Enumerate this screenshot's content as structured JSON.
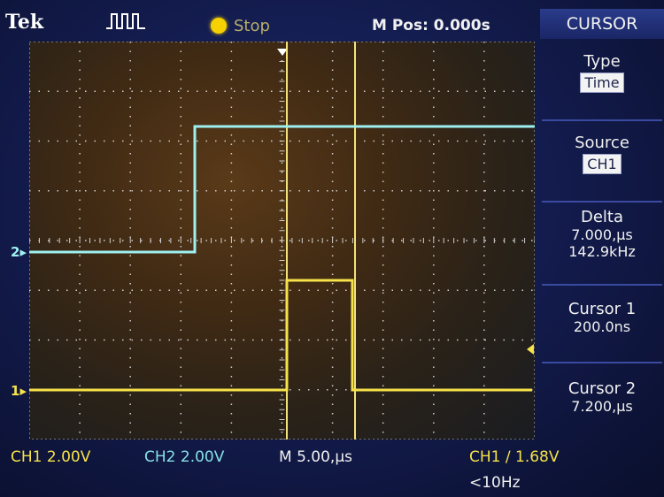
{
  "header": {
    "brand": "Tek",
    "trigger_icon": "trigger-pulse-icon",
    "acq_status": "Stop",
    "m_pos": "M Pos: 0.000s"
  },
  "menu": {
    "title": "CURSOR",
    "type_label": "Type",
    "type_value": "Time",
    "source_label": "Source",
    "source_value": "CH1",
    "delta_label": "Delta",
    "delta_time": "7.000,µs",
    "delta_freq": "142.9kHz",
    "cursor1_label": "Cursor 1",
    "cursor1_value": "200.0ns",
    "cursor2_label": "Cursor 2",
    "cursor2_value": "7.200,µs"
  },
  "markers": {
    "ch1": "1",
    "ch2": "2"
  },
  "status": {
    "ch1_scale": "CH1  2.00V",
    "ch2_scale": "CH2  2.00V",
    "timebase": "M 5.00,µs",
    "trigger": "CH1  ∕  1.68V",
    "trig_freq": "<10Hz"
  },
  "colors": {
    "ch1": "#f6e24a",
    "ch2": "#9ef0f0",
    "cursor": "#f3e27a"
  }
}
